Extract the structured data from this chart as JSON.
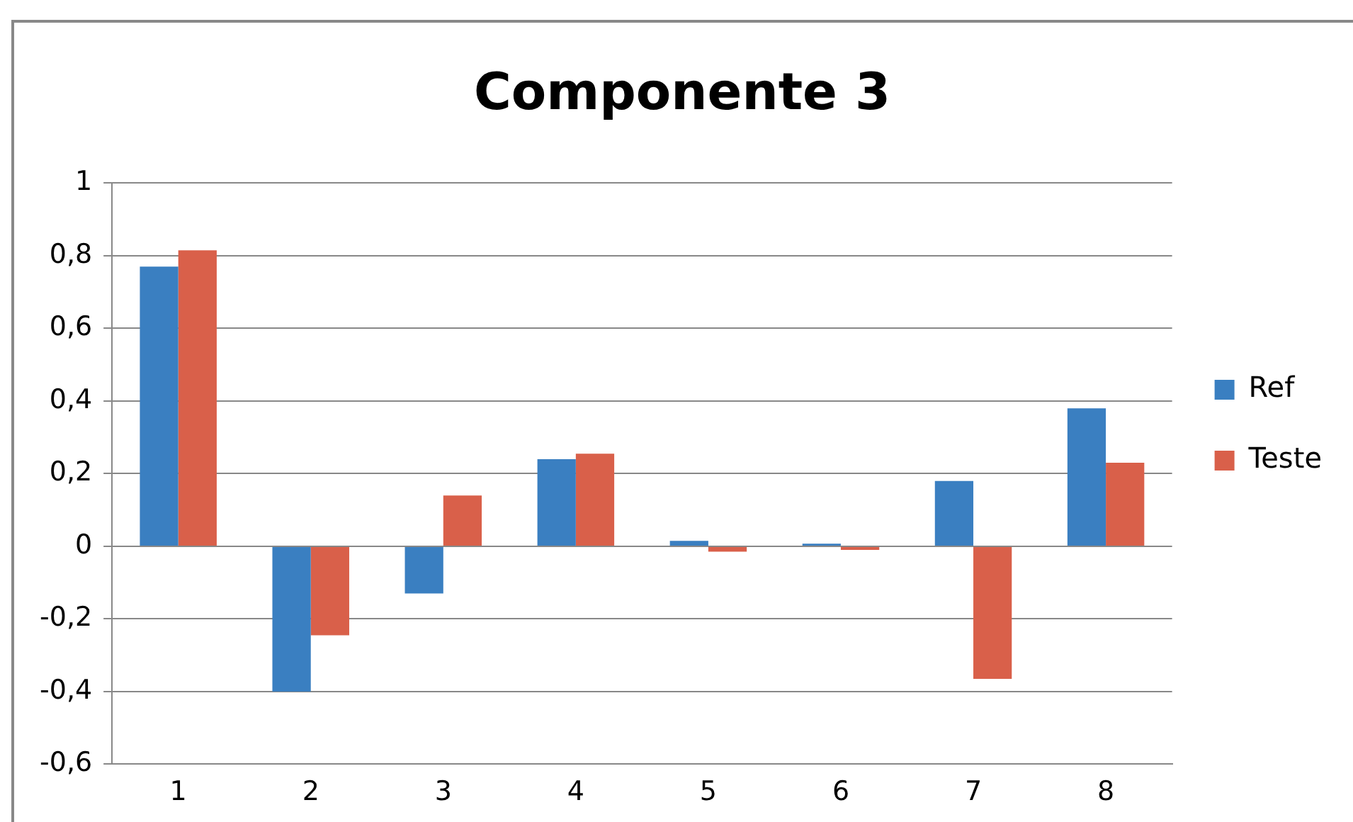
{
  "chart_data": {
    "type": "bar",
    "title": "Componente 3",
    "categories": [
      "1",
      "2",
      "3",
      "4",
      "5",
      "6",
      "7",
      "8"
    ],
    "series": [
      {
        "name": "Ref",
        "color": "#3a7fc1",
        "values": [
          0.77,
          -0.4,
          -0.13,
          0.24,
          0.015,
          0.007,
          0.18,
          0.38
        ]
      },
      {
        "name": "Teste",
        "color": "#d9604a",
        "values": [
          0.815,
          -0.245,
          0.14,
          0.255,
          -0.015,
          -0.01,
          -0.365,
          0.23
        ]
      }
    ],
    "ylim": [
      -0.6,
      1
    ],
    "yticks": [
      {
        "value": -0.6,
        "label": "-0,6"
      },
      {
        "value": -0.4,
        "label": "-0,4"
      },
      {
        "value": -0.2,
        "label": "-0,2"
      },
      {
        "value": 0,
        "label": "0"
      },
      {
        "value": 0.2,
        "label": "0,2"
      },
      {
        "value": 0.4,
        "label": "0,4"
      },
      {
        "value": 0.6,
        "label": "0,6"
      },
      {
        "value": 0.8,
        "label": "0,8"
      },
      {
        "value": 1,
        "label": "1"
      }
    ],
    "grid": "y",
    "legend": "right"
  }
}
